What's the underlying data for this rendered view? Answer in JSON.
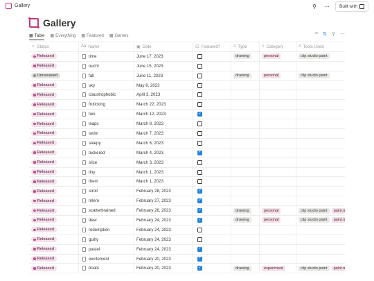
{
  "topbar": {
    "title": "Gallery",
    "search_icon": "search-icon",
    "more_icon": "more-icon",
    "built_with_label": "Built with"
  },
  "page": {
    "title": "Gallery"
  },
  "views": [
    {
      "label": "Table",
      "icon": "table-icon"
    },
    {
      "label": "Everything",
      "icon": "gallery-icon"
    },
    {
      "label": "Featured",
      "icon": "gallery-icon"
    },
    {
      "label": "Games",
      "icon": "gallery-icon"
    }
  ],
  "view_actions": [
    "filter-icon",
    "sort-icon",
    "search-icon",
    "more-icon"
  ],
  "table": {
    "columns": [
      {
        "label": "Status",
        "icon": "status-icon"
      },
      {
        "label": "Name",
        "icon": "text-icon"
      },
      {
        "label": "Date",
        "icon": "calendar-icon"
      },
      {
        "label": "Featured?",
        "icon": "checkbox-icon"
      },
      {
        "label": "Type",
        "icon": "list-icon"
      },
      {
        "label": "Category",
        "icon": "list-icon"
      },
      {
        "label": "Tools Used",
        "icon": "list-icon"
      }
    ],
    "rows": [
      {
        "status": "Released",
        "name": "time",
        "date": "June 17, 2023",
        "featured": false,
        "type": "drawing",
        "category": "personal",
        "tools": [
          "clip studio paint"
        ]
      },
      {
        "status": "Released",
        "name": "ouch!",
        "date": "June 15, 2023",
        "featured": false,
        "type": "",
        "category": "",
        "tools": []
      },
      {
        "status": "Unreleased",
        "name": "fall",
        "date": "June 11, 2023",
        "featured": false,
        "type": "drawing",
        "category": "personal",
        "tools": [
          "clip studio paint"
        ]
      },
      {
        "status": "Released",
        "name": "sky",
        "date": "May 8, 2023",
        "featured": false,
        "type": "",
        "category": "",
        "tools": []
      },
      {
        "status": "Released",
        "name": "claustrophobic",
        "date": "April 3, 2023",
        "featured": false,
        "type": "",
        "category": "",
        "tools": []
      },
      {
        "status": "Released",
        "name": "frolicking",
        "date": "March 22, 2023",
        "featured": false,
        "type": "",
        "category": "",
        "tools": []
      },
      {
        "status": "Released",
        "name": "two",
        "date": "March 12, 2023",
        "featured": true,
        "type": "",
        "category": "",
        "tools": []
      },
      {
        "status": "Released",
        "name": "leaps",
        "date": "March 8, 2023",
        "featured": false,
        "type": "",
        "category": "",
        "tools": []
      },
      {
        "status": "Released",
        "name": "swim",
        "date": "March 7, 2023",
        "featured": false,
        "type": "",
        "category": "",
        "tools": []
      },
      {
        "status": "Released",
        "name": "sleepy",
        "date": "March 6, 2023",
        "featured": false,
        "type": "",
        "category": "",
        "tools": []
      },
      {
        "status": "Released",
        "name": "tuckered",
        "date": "March 4, 2023",
        "featured": true,
        "type": "",
        "category": "",
        "tools": []
      },
      {
        "status": "Released",
        "name": "slice",
        "date": "March 3, 2023",
        "featured": false,
        "type": "",
        "category": "",
        "tools": []
      },
      {
        "status": "Released",
        "name": "tiny",
        "date": "March 1, 2023",
        "featured": false,
        "type": "",
        "category": "",
        "tools": []
      },
      {
        "status": "Released",
        "name": "them",
        "date": "March 1, 2023",
        "featured": false,
        "type": "",
        "category": "",
        "tools": []
      },
      {
        "status": "Released",
        "name": "stroll",
        "date": "February 28, 2023",
        "featured": true,
        "type": "",
        "category": "",
        "tools": []
      },
      {
        "status": "Released",
        "name": "mlem",
        "date": "February 27, 2023",
        "featured": true,
        "type": "",
        "category": "",
        "tools": []
      },
      {
        "status": "Released",
        "name": "scatterbrained",
        "date": "February 26, 2023",
        "featured": true,
        "type": "drawing",
        "category": "personal",
        "tools": [
          "clip studio paint",
          "paint.net"
        ]
      },
      {
        "status": "Released",
        "name": "deer",
        "date": "February 24, 2023",
        "featured": true,
        "type": "drawing",
        "category": "personal",
        "tools": [
          "clip studio paint",
          "paint.net"
        ]
      },
      {
        "status": "Released",
        "name": "redemption",
        "date": "February 24, 2023",
        "featured": false,
        "type": "",
        "category": "",
        "tools": []
      },
      {
        "status": "Released",
        "name": "guilty",
        "date": "February 24, 2023",
        "featured": false,
        "type": "",
        "category": "",
        "tools": []
      },
      {
        "status": "Released",
        "name": "pastel",
        "date": "February 24, 2023",
        "featured": true,
        "type": "",
        "category": "",
        "tools": []
      },
      {
        "status": "Released",
        "name": "excitement",
        "date": "February 20, 2023",
        "featured": true,
        "type": "",
        "category": "",
        "tools": []
      },
      {
        "status": "Released",
        "name": "boats",
        "date": "February 20, 2023",
        "featured": true,
        "type": "drawing",
        "category": "experiment",
        "tools": [
          "clip studio paint",
          "paint.net"
        ]
      }
    ]
  },
  "colors": {
    "accent_pink": "#c1377f",
    "checkbox_blue": "#2383e2",
    "released_bg": "#f4dfeb",
    "unreleased_bg": "#e3e2e0"
  }
}
